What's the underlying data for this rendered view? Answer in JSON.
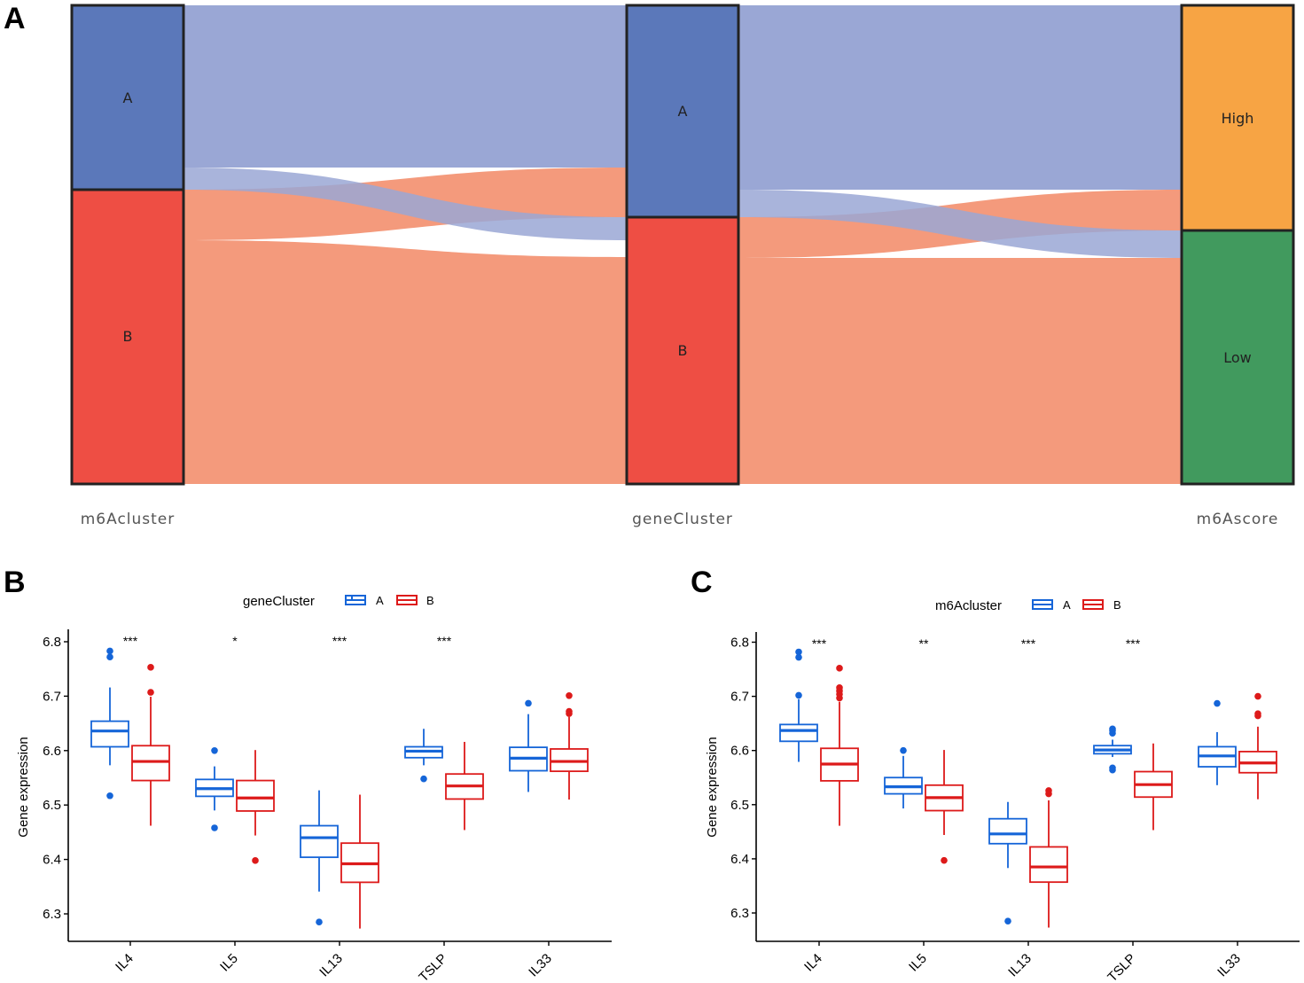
{
  "panels": {
    "A": "A",
    "B": "B",
    "C": "C"
  },
  "chart_data": [
    {
      "type": "sankey",
      "panel": "A",
      "axes": [
        "m6Acluster",
        "geneCluster",
        "m6Ascore"
      ],
      "strata": [
        {
          "axis": "m6Acluster",
          "label": "A",
          "color": "#5B78BA"
        },
        {
          "axis": "m6Acluster",
          "label": "B",
          "color": "#EE4E44"
        },
        {
          "axis": "geneCluster",
          "label": "A",
          "color": "#5B78BA"
        },
        {
          "axis": "geneCluster",
          "label": "B",
          "color": "#EE4E44"
        },
        {
          "axis": "m6Ascore",
          "label": "High",
          "color": "#F7A444"
        },
        {
          "axis": "m6Ascore",
          "label": "Low",
          "color": "#419A5E"
        }
      ],
      "flows_note": "flows between adjacent axes; blue = geneCluster A origin, salmon = B",
      "flows_axis1_axis2": [
        {
          "from": "A",
          "to": "A",
          "share": 0.34,
          "color": "#9AA7D5"
        },
        {
          "from": "A",
          "to": "B",
          "share": 0.05,
          "color": "#9AA7D5"
        },
        {
          "from": "B",
          "to": "A",
          "share": 0.1,
          "color": "#F49A7C"
        },
        {
          "from": "B",
          "to": "B",
          "share": 0.51,
          "color": "#F49A7C"
        }
      ],
      "flows_axis2_axis3": [
        {
          "from": "A",
          "to": "High",
          "share": 0.39,
          "color": "#9AA7D5"
        },
        {
          "from": "A",
          "to": "Low",
          "share": 0.06,
          "color": "#9AA7D5"
        },
        {
          "from": "B",
          "to": "High",
          "share": 0.085,
          "color": "#F49A7C"
        },
        {
          "from": "B",
          "to": "Low",
          "share": 0.465,
          "color": "#F49A7C"
        }
      ]
    },
    {
      "type": "boxplot",
      "panel": "B",
      "legend_title": "geneCluster",
      "groups": [
        {
          "name": "A",
          "color": "#1565D8"
        },
        {
          "name": "B",
          "color": "#DD1A1A"
        }
      ],
      "xlabel": "",
      "ylabel": "Gene expression",
      "ylim": [
        6.27,
        6.81
      ],
      "yticks": [
        "6.3",
        "6.4",
        "6.5",
        "6.6",
        "6.7",
        "6.8"
      ],
      "categories": [
        "IL4",
        "IL5",
        "IL13",
        "TSLP",
        "IL33"
      ],
      "significance": [
        "***",
        "*",
        "***",
        "***",
        ""
      ],
      "boxes": [
        {
          "category": "IL4",
          "group": "A",
          "min": 6.573,
          "q1": 6.607,
          "median": 6.636,
          "q3": 6.654,
          "max": 6.716,
          "outliers": [
            6.517,
            6.772,
            6.783
          ]
        },
        {
          "category": "IL4",
          "group": "B",
          "min": 6.462,
          "q1": 6.545,
          "median": 6.58,
          "q3": 6.609,
          "max": 6.699,
          "outliers": [
            6.707,
            6.753
          ]
        },
        {
          "category": "IL5",
          "group": "A",
          "min": 6.49,
          "q1": 6.516,
          "median": 6.53,
          "q3": 6.547,
          "max": 6.571,
          "outliers": [
            6.458,
            6.6
          ]
        },
        {
          "category": "IL5",
          "group": "B",
          "min": 6.444,
          "q1": 6.489,
          "median": 6.513,
          "q3": 6.545,
          "max": 6.601,
          "outliers": [
            6.398
          ]
        },
        {
          "category": "IL13",
          "group": "A",
          "min": 6.341,
          "q1": 6.404,
          "median": 6.44,
          "q3": 6.462,
          "max": 6.527,
          "outliers": [
            6.285
          ]
        },
        {
          "category": "IL13",
          "group": "B",
          "min": 6.273,
          "q1": 6.358,
          "median": 6.392,
          "q3": 6.43,
          "max": 6.519,
          "outliers": []
        },
        {
          "category": "TSLP",
          "group": "A",
          "min": 6.573,
          "q1": 6.587,
          "median": 6.599,
          "q3": 6.607,
          "max": 6.64,
          "outliers": [
            6.548
          ]
        },
        {
          "category": "TSLP",
          "group": "B",
          "min": 6.454,
          "q1": 6.511,
          "median": 6.535,
          "q3": 6.557,
          "max": 6.616,
          "outliers": []
        },
        {
          "category": "IL33",
          "group": "A",
          "min": 6.524,
          "q1": 6.563,
          "median": 6.586,
          "q3": 6.606,
          "max": 6.667,
          "outliers": [
            6.687
          ]
        },
        {
          "category": "IL33",
          "group": "B",
          "min": 6.51,
          "q1": 6.562,
          "median": 6.58,
          "q3": 6.603,
          "max": 6.662,
          "outliers": [
            6.668,
            6.672,
            6.701
          ]
        }
      ]
    },
    {
      "type": "boxplot",
      "panel": "C",
      "legend_title": "m6Acluster",
      "groups": [
        {
          "name": "A",
          "color": "#1565D8"
        },
        {
          "name": "B",
          "color": "#DD1A1A"
        }
      ],
      "xlabel": "",
      "ylabel": "Gene expression",
      "ylim": [
        6.27,
        6.81
      ],
      "yticks": [
        "6.3",
        "6.4",
        "6.5",
        "6.6",
        "6.7",
        "6.8"
      ],
      "categories": [
        "IL4",
        "IL5",
        "IL13",
        "TSLP",
        "IL33"
      ],
      "significance": [
        "***",
        "**",
        "***",
        "***",
        ""
      ],
      "boxes": [
        {
          "category": "IL4",
          "group": "A",
          "min": 6.579,
          "q1": 6.617,
          "median": 6.637,
          "q3": 6.648,
          "max": 6.695,
          "outliers": [
            6.702,
            6.772,
            6.782
          ]
        },
        {
          "category": "IL4",
          "group": "B",
          "min": 6.461,
          "q1": 6.544,
          "median": 6.575,
          "q3": 6.604,
          "max": 6.69,
          "outliers": [
            6.697,
            6.704,
            6.71,
            6.716,
            6.752
          ]
        },
        {
          "category": "IL5",
          "group": "A",
          "min": 6.493,
          "q1": 6.52,
          "median": 6.533,
          "q3": 6.55,
          "max": 6.59,
          "outliers": [
            6.6
          ]
        },
        {
          "category": "IL5",
          "group": "B",
          "min": 6.444,
          "q1": 6.489,
          "median": 6.513,
          "q3": 6.536,
          "max": 6.601,
          "outliers": [
            6.397
          ]
        },
        {
          "category": "IL13",
          "group": "A",
          "min": 6.383,
          "q1": 6.428,
          "median": 6.446,
          "q3": 6.474,
          "max": 6.505,
          "outliers": [
            6.285
          ]
        },
        {
          "category": "IL13",
          "group": "B",
          "min": 6.273,
          "q1": 6.357,
          "median": 6.385,
          "q3": 6.422,
          "max": 6.508,
          "outliers": [
            6.52,
            6.526
          ]
        },
        {
          "category": "TSLP",
          "group": "A",
          "min": 6.588,
          "q1": 6.594,
          "median": 6.601,
          "q3": 6.609,
          "max": 6.62,
          "outliers": [
            6.564,
            6.568,
            6.632,
            6.637,
            6.64
          ]
        },
        {
          "category": "TSLP",
          "group": "B",
          "min": 6.453,
          "q1": 6.514,
          "median": 6.537,
          "q3": 6.561,
          "max": 6.613,
          "outliers": []
        },
        {
          "category": "IL33",
          "group": "A",
          "min": 6.536,
          "q1": 6.57,
          "median": 6.59,
          "q3": 6.607,
          "max": 6.634,
          "outliers": [
            6.687
          ]
        },
        {
          "category": "IL33",
          "group": "B",
          "min": 6.51,
          "q1": 6.559,
          "median": 6.577,
          "q3": 6.598,
          "max": 6.644,
          "outliers": [
            6.664,
            6.668,
            6.7
          ]
        }
      ]
    }
  ]
}
